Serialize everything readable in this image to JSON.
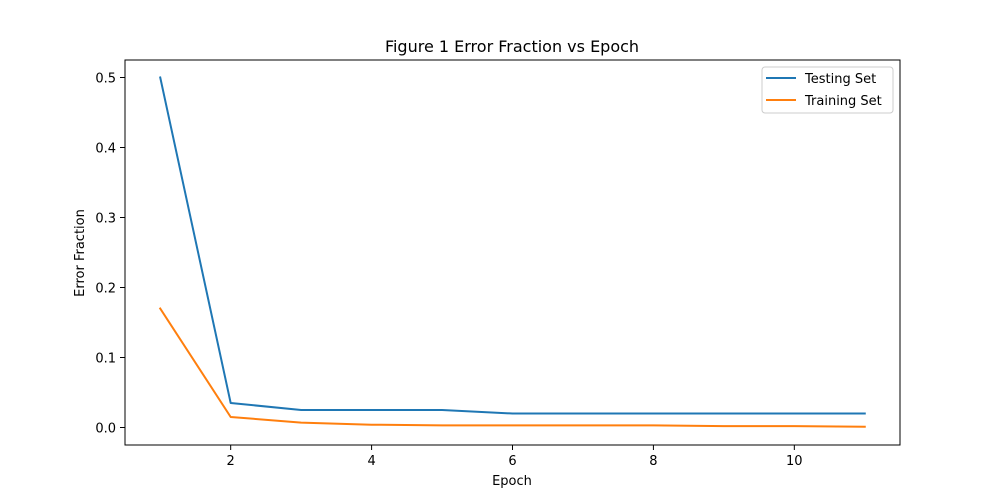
{
  "chart_data": {
    "type": "line",
    "title": "Figure 1 Error Fraction vs Epoch",
    "xlabel": "Epoch",
    "ylabel": "Error Fraction",
    "x": [
      1,
      2,
      3,
      4,
      5,
      6,
      7,
      8,
      9,
      10,
      11
    ],
    "xlim": [
      0.5,
      11.5
    ],
    "ylim": [
      -0.025,
      0.525
    ],
    "xticks": [
      2,
      4,
      6,
      8,
      10
    ],
    "yticks": [
      0.0,
      0.1,
      0.2,
      0.3,
      0.4,
      0.5
    ],
    "xtick_labels": [
      "2",
      "4",
      "6",
      "8",
      "10"
    ],
    "ytick_labels": [
      "0.0",
      "0.1",
      "0.2",
      "0.3",
      "0.4",
      "0.5"
    ],
    "grid": false,
    "legend_position": "top-right",
    "series": [
      {
        "name": "Testing Set",
        "color": "#1f77b4",
        "values": [
          0.5,
          0.035,
          0.025,
          0.025,
          0.025,
          0.02,
          0.02,
          0.02,
          0.02,
          0.02,
          0.02
        ]
      },
      {
        "name": "Training Set",
        "color": "#ff7f0e",
        "values": [
          0.17,
          0.015,
          0.007,
          0.004,
          0.003,
          0.003,
          0.003,
          0.003,
          0.002,
          0.002,
          0.001
        ]
      }
    ]
  }
}
